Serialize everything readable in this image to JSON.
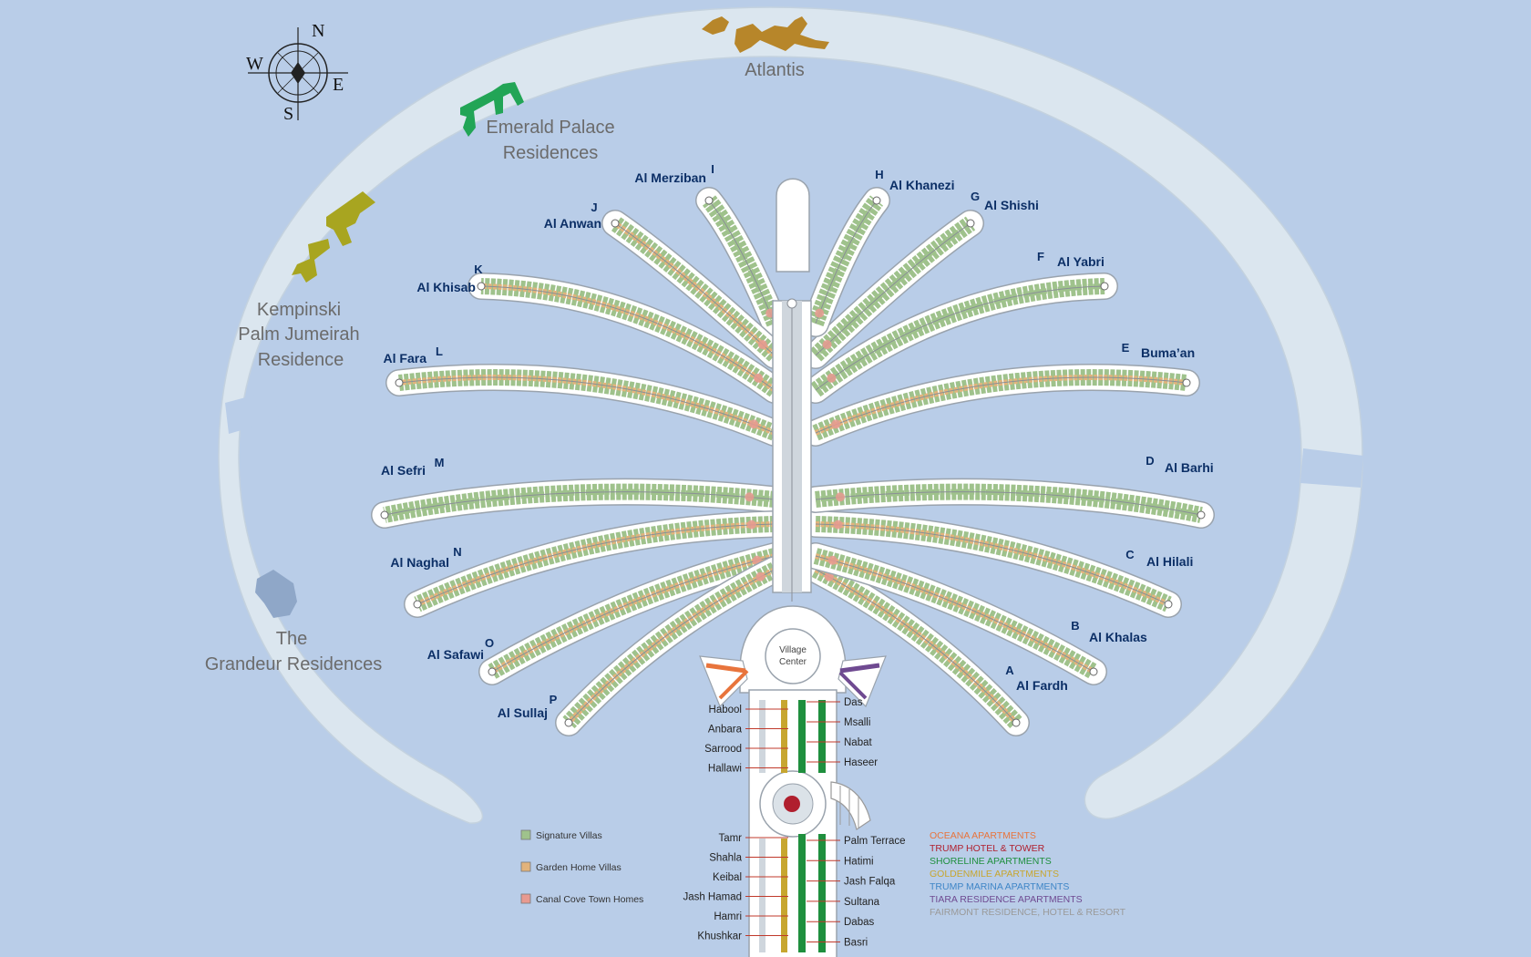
{
  "compass": {
    "north": "N",
    "south": "S",
    "east": "E",
    "west": "W"
  },
  "crescent_labels": {
    "atlantis": "Atlantis",
    "emerald": [
      "Emerald Palace",
      "Residences"
    ],
    "kempinski": [
      "Kempinski",
      "Palm Jumeirah",
      "Residence"
    ],
    "grandeur": [
      "The",
      "Grandeur Residences"
    ]
  },
  "colors": {
    "water": "#b9cde8",
    "crescent": "#dbe6ef",
    "frond_outline": "#9aa3ad",
    "signature_villa": "#9fc28c",
    "garden_home": "#e2b37c",
    "canal_cove": "#e89a90",
    "label_blue": "#0c2f66",
    "atlantis": "#b7862a",
    "emerald": "#22a556",
    "kempinski": "#a8a520",
    "grandeur": "#8fa7c8"
  },
  "fronds": [
    {
      "letter": "A",
      "name": "Al Fardh"
    },
    {
      "letter": "B",
      "name": "Al Khalas"
    },
    {
      "letter": "C",
      "name": "Al Hilali"
    },
    {
      "letter": "D",
      "name": "Al Barhi"
    },
    {
      "letter": "E",
      "name": "Buma’an"
    },
    {
      "letter": "F",
      "name": "Al Yabri"
    },
    {
      "letter": "G",
      "name": "Al Shishi"
    },
    {
      "letter": "H",
      "name": "Al Khanezi"
    },
    {
      "letter": "I",
      "name": "Al Merziban"
    },
    {
      "letter": "J",
      "name": "Al Anwan"
    },
    {
      "letter": "K",
      "name": "Al Khisab"
    },
    {
      "letter": "L",
      "name": "Al Fara"
    },
    {
      "letter": "M",
      "name": "Al Sefri"
    },
    {
      "letter": "N",
      "name": "Al Naghal"
    },
    {
      "letter": "O",
      "name": "Al Safawi"
    },
    {
      "letter": "P",
      "name": "Al Sullaj"
    }
  ],
  "village_center": [
    "Village",
    "Center"
  ],
  "trunk_streets_left_upper": [
    "Habool",
    "Anbara",
    "Sarrood",
    "Hallawi"
  ],
  "trunk_streets_right_upper": [
    "Das",
    "Msalli",
    "Nabat",
    "Haseer"
  ],
  "trunk_streets_left_lower": [
    "Tamr",
    "Shahla",
    "Keibal",
    "Jash Hamad",
    "Hamri",
    "Khushkar"
  ],
  "trunk_streets_right_lower": [
    "Palm Terrace",
    "Hatimi",
    "Jash Falqa",
    "Sultana",
    "Dabas",
    "Basri"
  ],
  "legend": [
    {
      "label": "Signature Villas",
      "color": "#9fc28c"
    },
    {
      "label": "Garden Home Villas",
      "color": "#e2b37c"
    },
    {
      "label": "Canal Cove Town Homes",
      "color": "#e89a90"
    }
  ],
  "developments": [
    {
      "label": "OCEANA APARTMENTS",
      "color": "#e8743c"
    },
    {
      "label": "TRUMP HOTEL & TOWER",
      "color": "#b01f2e"
    },
    {
      "label": "SHORELINE APARTMENTS",
      "color": "#1f8f3e"
    },
    {
      "label": "GOLDENMILE APARTMENTS",
      "color": "#c7a62f"
    },
    {
      "label": "TRUMP MARINA APARTMENTS",
      "color": "#3f86c7"
    },
    {
      "label": "TIARA RESIDENCE APARTMENTS",
      "color": "#6f4a91"
    },
    {
      "label": "FAIRMONT RESIDENCE, HOTEL & RESORT",
      "color": "#9a9a9a"
    }
  ]
}
